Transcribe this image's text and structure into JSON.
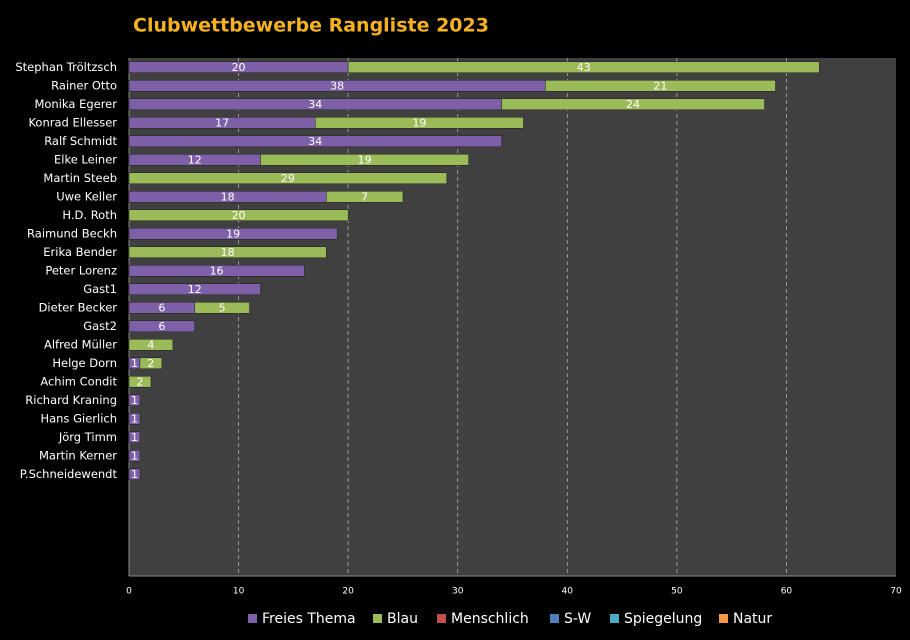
{
  "chart_data": {
    "type": "stacked-barh",
    "title": "Clubwettbewerbe Rangliste 2023",
    "categories": [
      "Stephan Tröltzsch",
      "Rainer Otto",
      "Monika Egerer",
      "Konrad Ellesser",
      "Ralf Schmidt",
      "Elke Leiner",
      "Martin Steeb",
      "Uwe Keller",
      "H.D. Roth",
      "Raimund Beckh",
      "Erika Bender",
      "Peter Lorenz",
      "Gast1",
      "Dieter Becker",
      "Gast2",
      "Alfred Müller",
      "Helge Dorn",
      "Achim Condit",
      "Richard Kraning",
      "Hans Gierlich",
      "Jörg Timm",
      "Martin  Kerner",
      "P.Schneidewendt",
      null,
      null,
      null,
      null,
      null
    ],
    "series": [
      {
        "name": "Freies Thema",
        "color": "#7d60a8",
        "values": [
          20,
          38,
          34,
          17,
          34,
          12,
          null,
          18,
          null,
          19,
          null,
          16,
          12,
          6,
          6,
          null,
          1,
          null,
          1,
          1,
          1,
          1,
          1,
          null,
          null,
          null,
          null,
          null
        ]
      },
      {
        "name": "Blau",
        "color": "#9bbb59",
        "values": [
          43,
          21,
          24,
          19,
          null,
          19,
          29,
          7,
          20,
          null,
          18,
          null,
          null,
          5,
          null,
          4,
          2,
          2,
          null,
          null,
          null,
          null,
          null,
          null,
          null,
          null,
          null,
          null
        ]
      },
      {
        "name": "Menschlich",
        "color": "#c0504d",
        "values": [
          null,
          null,
          null,
          null,
          null,
          null,
          null,
          null,
          null,
          null,
          null,
          null,
          null,
          null,
          null,
          null,
          null,
          null,
          null,
          null,
          null,
          null,
          null,
          null,
          null,
          null,
          null,
          null
        ]
      },
      {
        "name": "S-W",
        "color": "#4f81bd",
        "values": [
          null,
          null,
          null,
          null,
          null,
          null,
          null,
          null,
          null,
          null,
          null,
          null,
          null,
          null,
          null,
          null,
          null,
          null,
          null,
          null,
          null,
          null,
          null,
          null,
          null,
          null,
          null,
          null
        ]
      },
      {
        "name": "Spiegelung",
        "color": "#4bacc6",
        "values": [
          null,
          null,
          null,
          null,
          null,
          null,
          null,
          null,
          null,
          null,
          null,
          null,
          null,
          null,
          null,
          null,
          null,
          null,
          null,
          null,
          null,
          null,
          null,
          null,
          null,
          null,
          null,
          null
        ]
      },
      {
        "name": "Natur",
        "color": "#f79646",
        "values": [
          null,
          null,
          null,
          null,
          null,
          null,
          null,
          null,
          null,
          null,
          null,
          null,
          null,
          null,
          null,
          null,
          null,
          null,
          null,
          null,
          null,
          null,
          null,
          null,
          null,
          null,
          null,
          null
        ]
      }
    ],
    "xlim": [
      0,
      70
    ],
    "xticks": [
      0,
      10,
      20,
      30,
      40,
      50,
      60,
      70
    ],
    "grid": true,
    "legend": "bottom"
  }
}
